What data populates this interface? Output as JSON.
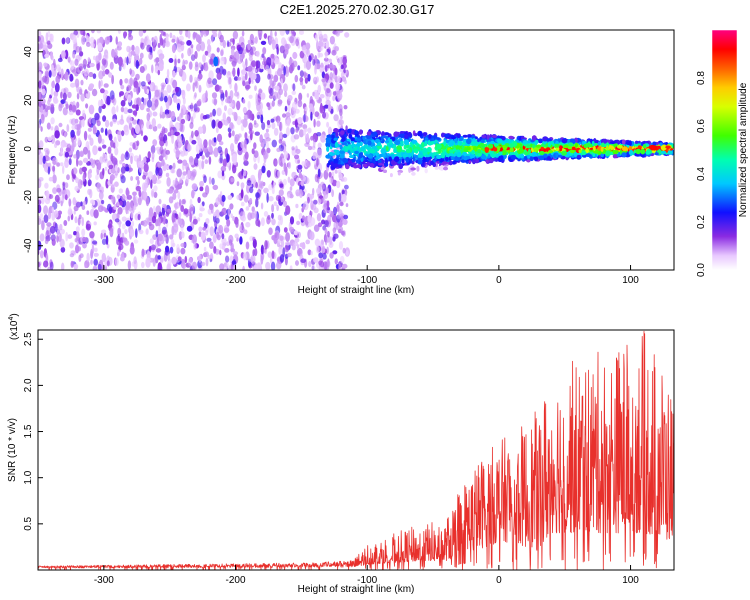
{
  "title": "C2E1.2025.270.02.30.G17",
  "colors": {
    "background": "#ffffff",
    "snr_line": "#e8302c",
    "noise_purple": "#7a2be0",
    "axis": "#000000"
  },
  "chart_data": [
    {
      "type": "heatmap",
      "xlabel": "Height of straight line (km)",
      "ylabel": "Frequency (Hz)",
      "xlim": [
        -350,
        133
      ],
      "ylim": [
        -50,
        49
      ],
      "xticks": [
        -300,
        -200,
        -100,
        0,
        100
      ],
      "yticks": [
        -40,
        -20,
        0,
        20,
        40
      ],
      "grid": false,
      "colorbar": {
        "label": "Normalized spectral amplitude",
        "range": [
          0,
          1
        ],
        "ticks": [
          0.0,
          0.2,
          0.4,
          0.6,
          0.8
        ],
        "tick_labels": [
          "0.0",
          "0.2",
          "0.4",
          "0.6",
          "0.8"
        ],
        "colormap": "rainbow (white-violet-blue-cyan-green-yellow-red-magenta)"
      },
      "features": {
        "noise_region_x": [
          -350,
          -115
        ],
        "signal_start_x": -130,
        "signal_center_freq_hz": 0,
        "signal_spread_hz_start": 8,
        "signal_spread_hz_end": 2
      }
    },
    {
      "type": "line",
      "xlabel": "Height of straight line (km)",
      "ylabel": "SNR (10 * v/v)",
      "yscale_label": "(x10",
      "yscale_exponent": "4",
      "xlim": [
        -350,
        133
      ],
      "ylim": [
        0,
        26000
      ],
      "xticks": [
        -300,
        -200,
        -100,
        0,
        100
      ],
      "yticks": [
        5000,
        10000,
        15000,
        20000,
        25000
      ],
      "ytick_labels": [
        "0.5",
        "1.0",
        "1.5",
        "2.0",
        "2.5"
      ],
      "grid": false,
      "series": [
        {
          "envelope_x": [
            -350,
            -200,
            -150,
            -110,
            -100,
            -80,
            -60,
            -40,
            -30,
            -20,
            -10,
            0,
            10,
            20,
            30,
            40,
            60,
            80,
            100,
            110,
            120,
            133
          ],
          "envelope_max": [
            500,
            800,
            900,
            1200,
            3000,
            4000,
            5000,
            5500,
            9000,
            11000,
            13000,
            14000,
            15000,
            16000,
            17500,
            22000,
            23000,
            24000,
            25000,
            26000,
            24000,
            19000
          ],
          "baseline": [
            200,
            250,
            300,
            300,
            600,
            800,
            1000,
            1000,
            1500,
            2000,
            2500,
            3000,
            3000,
            2500,
            2000,
            4000,
            4000,
            4000,
            4000,
            4000,
            3500,
            3000
          ]
        }
      ]
    }
  ]
}
